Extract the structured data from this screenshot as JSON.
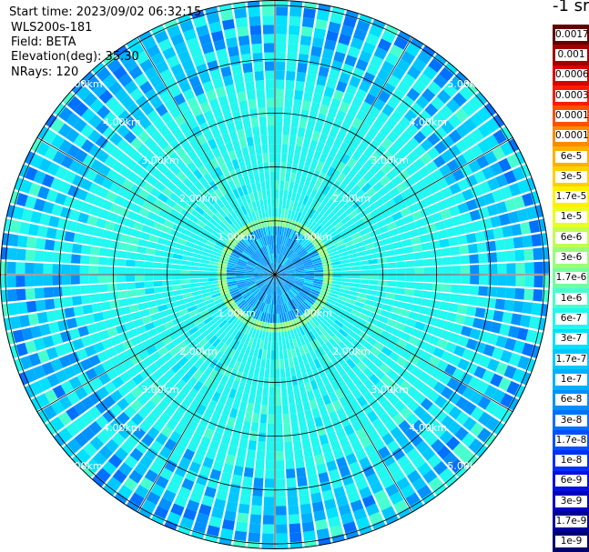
{
  "info": {
    "start_time": "Start time: 2023/09/02 06:32:15",
    "instrument": "WLS200s-181",
    "field": "Field: BETA",
    "elevation": "Elevation(deg): 35.30",
    "nrays": "NRays: 120"
  },
  "colorbar": {
    "unit_label": "-1 sr",
    "labels": [
      "0.0017",
      "0.001",
      "0.0006",
      "0.0003",
      "0.00017",
      "0.0001",
      "6e-5",
      "3e-5",
      "1.7e-5",
      "1e-5",
      "6e-6",
      "3e-6",
      "1.7e-6",
      "1e-6",
      "6e-7",
      "3e-7",
      "1.7e-7",
      "1e-7",
      "6e-8",
      "3e-8",
      "1.7e-8",
      "1e-8",
      "6e-9",
      "3e-9",
      "1.7e-9",
      "1e-9"
    ],
    "colors": [
      "#600000",
      "#a00000",
      "#d80000",
      "#ff1a00",
      "#ff5000",
      "#ff8a00",
      "#ffb000",
      "#ffd000",
      "#fff000",
      "#e8ff20",
      "#c0ff50",
      "#98ff78",
      "#70ffa0",
      "#48ffd0",
      "#20f8f0",
      "#00e0ff",
      "#00c8ff",
      "#00b0ff",
      "#0090ff",
      "#0070ff",
      "#0050ff",
      "#0030f8",
      "#0010e0",
      "#0000c0",
      "#000098",
      "#000070"
    ]
  },
  "chart_data": {
    "type": "heatmap",
    "projection": "polar PPI (range rings and azimuth spokes)",
    "field": "BETA",
    "rays": 120,
    "elevation_deg": 35.3,
    "range_rings_km": [
      1,
      2,
      3,
      4,
      5
    ],
    "range_ring_labels": [
      "1.00km",
      "2.00km",
      "3.00km",
      "4.00km",
      "5.00km"
    ],
    "spoke_azimuths_deg": [
      0,
      30,
      60,
      90,
      120,
      150,
      180,
      210,
      240,
      270,
      300,
      330
    ],
    "max_range_km": 5.1,
    "value_scale": "log",
    "dominant_value_range": [
      1e-08,
      1e-06
    ]
  }
}
